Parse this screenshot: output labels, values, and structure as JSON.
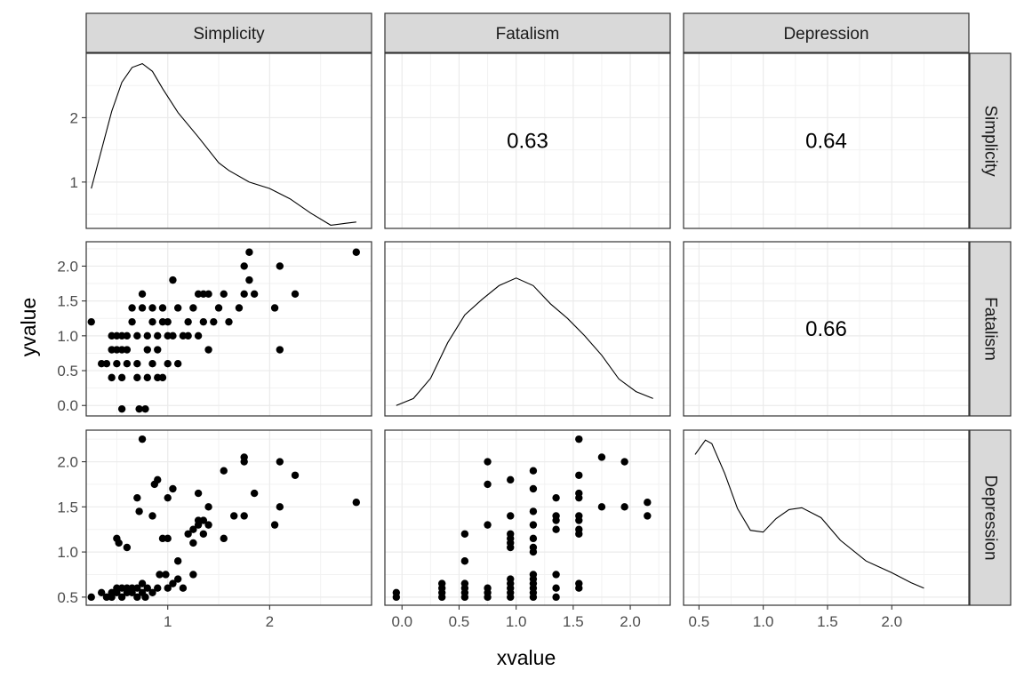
{
  "chart_data": {
    "type": "scatter-matrix",
    "variables": [
      "Simplicity",
      "Fatalism",
      "Depression"
    ],
    "xlabel": "xvalue",
    "ylabel": "yvalue",
    "grid": true,
    "theme": "bw",
    "axes": {
      "x": [
        {
          "range": [
            0.2,
            3.0
          ],
          "ticks": [
            1,
            2
          ],
          "tick_labels": [
            "1",
            "2"
          ]
        },
        {
          "range": [
            -0.15,
            2.35
          ],
          "ticks": [
            0,
            0.5,
            1,
            1.5,
            2
          ],
          "tick_labels": [
            "0.0",
            "0.5",
            "1.0",
            "1.5",
            "2.0"
          ]
        },
        {
          "range": [
            0.38,
            2.6
          ],
          "ticks": [
            0.5,
            1,
            1.5,
            2
          ],
          "tick_labels": [
            "0.5",
            "1.0",
            "1.5",
            "2.0"
          ]
        }
      ],
      "y": [
        {
          "range": [
            0.28,
            3.0
          ],
          "ticks": [
            1,
            2
          ],
          "tick_labels": [
            "1",
            "2"
          ]
        },
        {
          "range": [
            -0.15,
            2.35
          ],
          "ticks": [
            0,
            0.5,
            1,
            1.5,
            2
          ],
          "tick_labels": [
            "0.0",
            "0.5",
            "1.0",
            "1.5",
            "2.0"
          ]
        },
        {
          "range": [
            0.41,
            2.35
          ],
          "ticks": [
            0.5,
            1,
            1.5,
            2
          ],
          "tick_labels": [
            "0.5",
            "1.0",
            "1.5",
            "2.0"
          ]
        }
      ]
    },
    "correlations": [
      {
        "row": 0,
        "col": 1,
        "value": "0.63"
      },
      {
        "row": 0,
        "col": 2,
        "value": "0.64"
      },
      {
        "row": 1,
        "col": 2,
        "value": "0.66"
      }
    ],
    "densities": [
      {
        "variable": "Simplicity",
        "x": [
          0.25,
          0.35,
          0.45,
          0.55,
          0.65,
          0.75,
          0.85,
          0.95,
          1.1,
          1.3,
          1.5,
          1.6,
          1.8,
          2.0,
          2.2,
          2.4,
          2.6,
          2.75,
          2.85
        ],
        "y": [
          0.9,
          1.5,
          2.1,
          2.55,
          2.78,
          2.84,
          2.72,
          2.45,
          2.08,
          1.7,
          1.3,
          1.18,
          1.0,
          0.9,
          0.74,
          0.52,
          0.33,
          0.36,
          0.38
        ]
      },
      {
        "variable": "Fatalism",
        "x": [
          -0.05,
          0.1,
          0.25,
          0.4,
          0.55,
          0.7,
          0.85,
          1.0,
          1.15,
          1.3,
          1.45,
          1.6,
          1.75,
          1.9,
          2.05,
          2.2
        ],
        "y": [
          0.0,
          0.1,
          0.39,
          0.9,
          1.3,
          1.52,
          1.72,
          1.83,
          1.72,
          1.46,
          1.25,
          1.0,
          0.72,
          0.38,
          0.2,
          0.1
        ]
      },
      {
        "variable": "Depression",
        "x": [
          0.47,
          0.55,
          0.6,
          0.7,
          0.8,
          0.9,
          1.0,
          1.1,
          1.2,
          1.3,
          1.45,
          1.6,
          1.8,
          2.0,
          2.15,
          2.25
        ],
        "y": [
          2.08,
          2.24,
          2.2,
          1.87,
          1.48,
          1.24,
          1.22,
          1.37,
          1.47,
          1.49,
          1.38,
          1.13,
          0.9,
          0.77,
          0.66,
          0.6
        ]
      }
    ],
    "scatter": {
      "Fatalism_vs_Simplicity": [
        [
          0.25,
          1.2
        ],
        [
          0.35,
          0.6
        ],
        [
          0.4,
          0.6
        ],
        [
          0.45,
          0.4
        ],
        [
          0.45,
          0.8
        ],
        [
          0.45,
          1.0
        ],
        [
          0.5,
          0.6
        ],
        [
          0.5,
          0.8
        ],
        [
          0.5,
          1.0
        ],
        [
          0.55,
          0.4
        ],
        [
          0.55,
          0.8
        ],
        [
          0.55,
          1.0
        ],
        [
          0.6,
          0.6
        ],
        [
          0.6,
          0.8
        ],
        [
          0.6,
          1.0
        ],
        [
          0.55,
          -0.05
        ],
        [
          0.65,
          1.2
        ],
        [
          0.65,
          1.4
        ],
        [
          0.7,
          0.4
        ],
        [
          0.7,
          0.6
        ],
        [
          0.7,
          1.0
        ],
        [
          0.72,
          -0.05
        ],
        [
          0.75,
          1.4
        ],
        [
          0.75,
          1.6
        ],
        [
          0.78,
          -0.05
        ],
        [
          0.8,
          0.4
        ],
        [
          0.8,
          0.8
        ],
        [
          0.8,
          1.0
        ],
        [
          0.85,
          0.6
        ],
        [
          0.85,
          1.2
        ],
        [
          0.85,
          1.4
        ],
        [
          0.9,
          0.4
        ],
        [
          0.9,
          0.8
        ],
        [
          0.9,
          1.0
        ],
        [
          0.95,
          0.4
        ],
        [
          0.95,
          1.2
        ],
        [
          0.95,
          1.4
        ],
        [
          1.0,
          1.0
        ],
        [
          1.0,
          1.2
        ],
        [
          1.0,
          0.6
        ],
        [
          1.05,
          1.8
        ],
        [
          1.05,
          1.0
        ],
        [
          1.1,
          1.4
        ],
        [
          1.1,
          0.6
        ],
        [
          1.15,
          1.0
        ],
        [
          1.2,
          1.2
        ],
        [
          1.2,
          1.0
        ],
        [
          1.25,
          1.4
        ],
        [
          1.3,
          1.6
        ],
        [
          1.3,
          1.0
        ],
        [
          1.35,
          1.2
        ],
        [
          1.35,
          1.6
        ],
        [
          1.4,
          1.6
        ],
        [
          1.4,
          0.8
        ],
        [
          1.45,
          1.2
        ],
        [
          1.5,
          1.4
        ],
        [
          1.55,
          1.6
        ],
        [
          1.6,
          1.2
        ],
        [
          1.7,
          1.4
        ],
        [
          1.75,
          1.6
        ],
        [
          1.8,
          1.8
        ],
        [
          1.75,
          2.0
        ],
        [
          1.85,
          1.6
        ],
        [
          1.8,
          2.2
        ],
        [
          2.05,
          1.4
        ],
        [
          2.1,
          2.0
        ],
        [
          2.1,
          0.8
        ],
        [
          2.25,
          1.6
        ],
        [
          2.85,
          2.2
        ]
      ],
      "Depression_vs_Simplicity": [
        [
          0.25,
          0.5
        ],
        [
          0.35,
          0.55
        ],
        [
          0.4,
          0.5
        ],
        [
          0.45,
          0.5
        ],
        [
          0.45,
          0.55
        ],
        [
          0.5,
          0.55
        ],
        [
          0.5,
          0.6
        ],
        [
          0.5,
          1.15
        ],
        [
          0.52,
          1.1
        ],
        [
          0.55,
          0.5
        ],
        [
          0.55,
          0.6
        ],
        [
          0.6,
          0.55
        ],
        [
          0.6,
          0.6
        ],
        [
          0.6,
          1.05
        ],
        [
          0.65,
          0.55
        ],
        [
          0.65,
          0.6
        ],
        [
          0.7,
          0.5
        ],
        [
          0.7,
          0.6
        ],
        [
          0.7,
          1.6
        ],
        [
          0.72,
          1.45
        ],
        [
          0.75,
          0.55
        ],
        [
          0.75,
          0.65
        ],
        [
          0.75,
          2.25
        ],
        [
          0.78,
          0.5
        ],
        [
          0.8,
          0.6
        ],
        [
          0.85,
          0.55
        ],
        [
          0.85,
          1.4
        ],
        [
          0.87,
          1.75
        ],
        [
          0.9,
          0.6
        ],
        [
          0.9,
          1.8
        ],
        [
          0.92,
          0.75
        ],
        [
          0.95,
          1.15
        ],
        [
          0.98,
          0.75
        ],
        [
          1.0,
          1.15
        ],
        [
          1.0,
          1.6
        ],
        [
          1.0,
          0.6
        ],
        [
          1.05,
          1.7
        ],
        [
          1.05,
          0.65
        ],
        [
          1.1,
          0.9
        ],
        [
          1.1,
          0.7
        ],
        [
          1.15,
          0.6
        ],
        [
          1.2,
          1.2
        ],
        [
          1.25,
          1.25
        ],
        [
          1.25,
          1.1
        ],
        [
          1.25,
          0.75
        ],
        [
          1.3,
          1.35
        ],
        [
          1.3,
          1.65
        ],
        [
          1.3,
          1.3
        ],
        [
          1.35,
          1.35
        ],
        [
          1.35,
          1.2
        ],
        [
          1.4,
          1.5
        ],
        [
          1.4,
          1.3
        ],
        [
          1.55,
          1.15
        ],
        [
          1.55,
          1.9
        ],
        [
          1.65,
          1.4
        ],
        [
          1.75,
          2.0
        ],
        [
          1.75,
          2.05
        ],
        [
          1.75,
          1.4
        ],
        [
          1.85,
          1.65
        ],
        [
          2.05,
          1.3
        ],
        [
          2.1,
          1.5
        ],
        [
          2.1,
          2.0
        ],
        [
          2.25,
          1.85
        ],
        [
          2.85,
          1.55
        ]
      ],
      "Depression_vs_Fatalism": [
        [
          -0.05,
          0.5
        ],
        [
          -0.05,
          0.55
        ],
        [
          0.35,
          0.5
        ],
        [
          0.35,
          0.55
        ],
        [
          0.35,
          0.6
        ],
        [
          0.35,
          0.65
        ],
        [
          0.55,
          0.5
        ],
        [
          0.55,
          0.55
        ],
        [
          0.55,
          0.6
        ],
        [
          0.55,
          0.65
        ],
        [
          0.55,
          0.9
        ],
        [
          0.55,
          1.2
        ],
        [
          0.75,
          0.5
        ],
        [
          0.75,
          0.55
        ],
        [
          0.75,
          0.6
        ],
        [
          0.75,
          1.3
        ],
        [
          0.75,
          1.75
        ],
        [
          0.75,
          2.0
        ],
        [
          0.95,
          0.5
        ],
        [
          0.95,
          0.55
        ],
        [
          0.95,
          0.6
        ],
        [
          0.95,
          0.65
        ],
        [
          0.95,
          0.7
        ],
        [
          0.95,
          1.05
        ],
        [
          0.95,
          1.1
        ],
        [
          0.95,
          1.15
        ],
        [
          0.95,
          1.2
        ],
        [
          0.95,
          1.4
        ],
        [
          0.95,
          1.8
        ],
        [
          1.15,
          0.5
        ],
        [
          1.15,
          0.55
        ],
        [
          1.15,
          0.6
        ],
        [
          1.15,
          0.65
        ],
        [
          1.15,
          0.7
        ],
        [
          1.15,
          0.75
        ],
        [
          1.15,
          1.0
        ],
        [
          1.15,
          1.05
        ],
        [
          1.15,
          1.15
        ],
        [
          1.15,
          1.3
        ],
        [
          1.15,
          1.45
        ],
        [
          1.15,
          1.7
        ],
        [
          1.15,
          1.9
        ],
        [
          1.35,
          0.5
        ],
        [
          1.35,
          0.6
        ],
        [
          1.35,
          0.75
        ],
        [
          1.35,
          1.25
        ],
        [
          1.35,
          1.35
        ],
        [
          1.35,
          1.4
        ],
        [
          1.35,
          1.6
        ],
        [
          1.55,
          0.6
        ],
        [
          1.55,
          0.65
        ],
        [
          1.55,
          1.2
        ],
        [
          1.55,
          1.25
        ],
        [
          1.55,
          1.35
        ],
        [
          1.55,
          1.4
        ],
        [
          1.55,
          1.6
        ],
        [
          1.55,
          1.65
        ],
        [
          1.55,
          1.85
        ],
        [
          1.55,
          2.25
        ],
        [
          1.75,
          1.5
        ],
        [
          1.75,
          2.05
        ],
        [
          1.95,
          1.5
        ],
        [
          1.95,
          2.0
        ],
        [
          2.15,
          1.4
        ],
        [
          2.15,
          1.55
        ]
      ]
    }
  }
}
